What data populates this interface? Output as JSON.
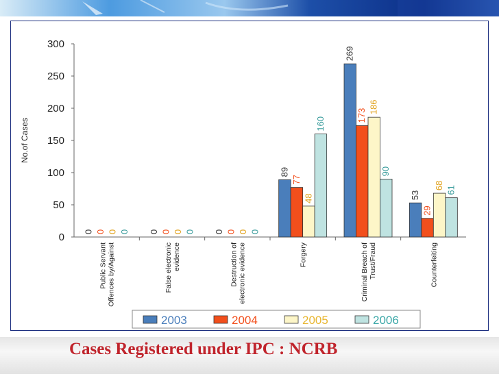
{
  "caption": "Cases Registered under IPC :  NCRB",
  "colors": {
    "s2003": "#4a7ebb",
    "s2004": "#f24f1c",
    "s2005": "#fdf6c8",
    "s2006": "#bfe3e1",
    "caption": "#c0242c",
    "frame": "#1c2f80"
  },
  "chart_data": {
    "type": "bar",
    "ylabel": "No.of Cases",
    "xlabel": "",
    "ylim": [
      0,
      300
    ],
    "yticks": [
      "0",
      "50",
      "100",
      "150",
      "200",
      "250",
      "300"
    ],
    "categories": [
      [
        "Public Servant",
        "Offences by/Against"
      ],
      [
        "False electronic",
        "evidence"
      ],
      [
        "Destruction of",
        "electronic evidence"
      ],
      [
        "Forgery"
      ],
      [
        "Criminal Breach of",
        "Trust/Fraud"
      ],
      [
        "Counterfeiting"
      ]
    ],
    "series": [
      {
        "name": "2003",
        "values": [
          0,
          0,
          0,
          89,
          269,
          53
        ],
        "labels": [
          "0",
          "0",
          "0",
          "89",
          "269",
          "53"
        ]
      },
      {
        "name": "2004",
        "values": [
          0,
          0,
          0,
          77,
          173,
          29
        ],
        "labels": [
          "0",
          "0",
          "0",
          "77",
          "173",
          "29"
        ]
      },
      {
        "name": "2005",
        "values": [
          0,
          0,
          0,
          48,
          186,
          68
        ],
        "labels": [
          "0",
          "0",
          "0",
          "48",
          "186",
          "68"
        ]
      },
      {
        "name": "2006",
        "values": [
          0,
          0,
          0,
          160,
          90,
          61
        ],
        "labels": [
          "0",
          "0",
          "0",
          "160",
          "90",
          "61"
        ]
      }
    ],
    "legend_position": "bottom",
    "grid": false
  }
}
